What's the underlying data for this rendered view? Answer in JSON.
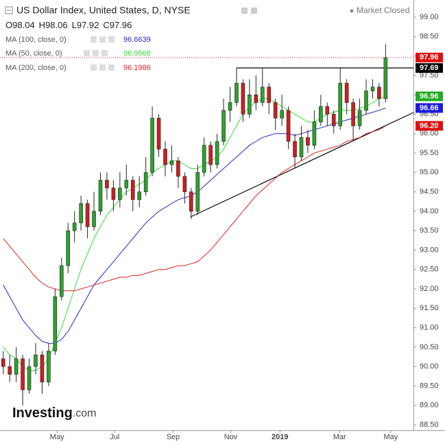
{
  "chart_data": {
    "type": "candlestick",
    "title": "US Dollar Index, United States, D, NYSE",
    "status": "Market Closed",
    "ohlc": [
      {
        "label": "O",
        "value": 98.04
      },
      {
        "label": "H",
        "value": 98.06
      },
      {
        "label": "L",
        "value": 97.92
      },
      {
        "label": "C",
        "value": 97.96
      }
    ],
    "watermark": [
      "Investing",
      ".com"
    ],
    "up_color": "#2ea12e",
    "down_color": "#cc1f1f",
    "candles": {
      "open": [
        90.2,
        90.0,
        89.8,
        90.2,
        89.4,
        90.0,
        90.3,
        89.6,
        90.4,
        91.8,
        92.6,
        93.5,
        93.7,
        94.2,
        93.6,
        94.0,
        94.8,
        94.6,
        94.3,
        94.6,
        94.8,
        94.3,
        94.5,
        95.0,
        96.4,
        95.6,
        95.2,
        95.3,
        94.9,
        94.5,
        94.0,
        95.0,
        95.7,
        95.2,
        95.8,
        96.6,
        96.8,
        97.3,
        96.5,
        97.0,
        96.8,
        97.2,
        96.8,
        96.4,
        96.6,
        95.8,
        95.4,
        95.9,
        95.7,
        96.3,
        96.7,
        96.5,
        96.2,
        97.3,
        96.8,
        96.2,
        96.6,
        97.1,
        97.2,
        96.9
      ],
      "high": [
        90.4,
        90.3,
        90.5,
        90.3,
        90.2,
        90.6,
        90.4,
        90.6,
        92.0,
        92.8,
        93.7,
        94.0,
        94.4,
        94.3,
        94.5,
        95.0,
        95.0,
        94.8,
        95.0,
        95.2,
        94.9,
        94.9,
        95.4,
        96.7,
        96.5,
        95.8,
        95.7,
        95.4,
        95.0,
        94.6,
        95.2,
        95.9,
        95.8,
        96.0,
        96.9,
        97.2,
        97.7,
        97.4,
        97.4,
        97.5,
        97.7,
        97.3,
        96.9,
        97.0,
        96.7,
        96.0,
        96.2,
        96.1,
        96.6,
        97.0,
        96.8,
        96.6,
        97.7,
        97.4,
        96.9,
        96.9,
        97.4,
        97.4,
        97.3,
        98.3
      ],
      "low": [
        89.8,
        89.6,
        89.6,
        89.0,
        89.3,
        89.8,
        89.3,
        89.5,
        90.3,
        91.7,
        92.4,
        93.2,
        93.5,
        93.3,
        93.5,
        93.9,
        94.3,
        94.0,
        94.1,
        94.4,
        94.0,
        94.1,
        94.4,
        94.9,
        95.4,
        94.9,
        95.0,
        94.6,
        94.2,
        93.8,
        93.9,
        94.9,
        95.0,
        95.1,
        95.7,
        96.3,
        96.7,
        96.3,
        96.4,
        96.6,
        96.7,
        96.5,
        96.1,
        96.2,
        95.6,
        95.1,
        95.3,
        95.5,
        95.6,
        96.2,
        96.2,
        96.0,
        96.1,
        96.5,
        95.8,
        96.1,
        96.5,
        96.9,
        96.7,
        96.8
      ],
      "close": [
        90.0,
        89.8,
        90.2,
        89.4,
        90.0,
        90.3,
        89.6,
        90.4,
        91.8,
        92.6,
        93.5,
        93.7,
        94.2,
        93.6,
        94.0,
        94.8,
        94.6,
        94.3,
        94.6,
        94.8,
        94.3,
        94.5,
        95.0,
        96.4,
        95.6,
        95.2,
        95.3,
        94.9,
        94.5,
        94.0,
        95.0,
        95.7,
        95.2,
        95.8,
        96.6,
        96.8,
        97.3,
        96.5,
        97.0,
        96.8,
        97.2,
        96.8,
        96.4,
        96.6,
        95.8,
        95.4,
        95.9,
        95.7,
        96.3,
        96.7,
        96.5,
        96.2,
        97.3,
        96.8,
        96.2,
        96.6,
        97.1,
        97.2,
        96.9,
        97.96
      ]
    },
    "series": [
      {
        "name": "MA (100, close, 0)",
        "color": "#2626c8",
        "legend_value": 96.6639,
        "values": [
          92.1,
          91.8,
          91.5,
          91.2,
          91.0,
          90.8,
          90.65,
          90.6,
          90.6,
          90.7,
          90.9,
          91.2,
          91.5,
          91.8,
          92.1,
          92.3,
          92.5,
          92.7,
          92.9,
          93.1,
          93.3,
          93.5,
          93.7,
          93.85,
          94.0,
          94.1,
          94.2,
          94.3,
          94.35,
          94.4,
          94.5,
          94.65,
          94.8,
          94.95,
          95.1,
          95.25,
          95.4,
          95.55,
          95.7,
          95.8,
          95.9,
          95.95,
          96.0,
          96.0,
          96.0,
          95.95,
          96.0,
          96.05,
          96.1,
          96.15,
          96.2,
          96.25,
          96.3,
          96.35,
          96.4,
          96.45,
          96.5,
          96.55,
          96.6,
          96.66
        ]
      },
      {
        "name": "MA (50, close, 0)",
        "color": "#33dd33",
        "legend_value": 96.9568,
        "values": [
          90.5,
          90.3,
          90.2,
          90.0,
          89.9,
          89.9,
          90.0,
          90.2,
          90.6,
          91.0,
          91.5,
          92.0,
          92.5,
          92.9,
          93.3,
          93.6,
          93.9,
          94.1,
          94.3,
          94.5,
          94.6,
          94.7,
          94.8,
          95.0,
          95.1,
          95.2,
          95.3,
          95.3,
          95.2,
          95.1,
          95.1,
          95.2,
          95.3,
          95.4,
          95.6,
          95.9,
          96.2,
          96.5,
          96.7,
          96.8,
          96.9,
          96.9,
          96.8,
          96.7,
          96.6,
          96.5,
          96.4,
          96.3,
          96.3,
          96.4,
          96.5,
          96.55,
          96.6,
          96.6,
          96.6,
          96.65,
          96.7,
          96.8,
          96.9,
          96.96
        ]
      },
      {
        "name": "MA (200, close, 0)",
        "color": "#dd2222",
        "legend_value": 96.1986,
        "values": [
          93.3,
          93.1,
          92.9,
          92.7,
          92.5,
          92.3,
          92.15,
          92.05,
          92.0,
          91.95,
          91.95,
          91.95,
          92.0,
          92.05,
          92.1,
          92.15,
          92.2,
          92.25,
          92.3,
          92.3,
          92.35,
          92.35,
          92.4,
          92.45,
          92.5,
          92.5,
          92.55,
          92.6,
          92.6,
          92.65,
          92.7,
          92.85,
          93.0,
          93.2,
          93.4,
          93.6,
          93.8,
          94.0,
          94.2,
          94.4,
          94.55,
          94.7,
          94.85,
          95.0,
          95.1,
          95.2,
          95.3,
          95.4,
          95.5,
          95.55,
          95.6,
          95.65,
          95.7,
          95.8,
          95.85,
          95.9,
          96.0,
          96.05,
          96.1,
          96.2
        ]
      }
    ],
    "level_labels": [
      97.96,
      97.69,
      96.96,
      96.66,
      {
        "value": 96.2,
        "label": "96.20"
      }
    ],
    "level_colors": [
      "#e01010",
      "#000000",
      "#22aa22",
      "#1a1ae0",
      "#e01010"
    ],
    "xlim": [
      -0.5,
      63.3
    ],
    "xticks": [
      {
        "value": 8.3,
        "label": "May"
      },
      {
        "value": 17.2,
        "label": "Jul"
      },
      {
        "value": 26.2,
        "label": "Sep"
      },
      {
        "value": 35.1,
        "label": "Nov"
      },
      {
        "value": 42.7,
        "label": "2019"
      },
      {
        "value": 51.9,
        "label": "Mar"
      },
      {
        "value": 59.8,
        "label": "May"
      }
    ],
    "ylim": [
      88.5,
      99.0
    ],
    "yticks": [
      {
        "value": 88.5,
        "label": "88.50"
      },
      {
        "value": 89,
        "label": "89.00"
      },
      {
        "value": 89.5,
        "label": "89.50"
      },
      {
        "value": 90,
        "label": "90.00"
      },
      {
        "value": 90.5,
        "label": "90.50"
      },
      {
        "value": 91,
        "label": "91.00"
      },
      {
        "value": 91.5,
        "label": "91.50"
      },
      {
        "value": 92,
        "label": "92.00"
      },
      {
        "value": 92.5,
        "label": "92.50"
      },
      {
        "value": 93,
        "label": "93.00"
      },
      {
        "value": 93.5,
        "label": "93.50"
      },
      {
        "value": 94,
        "label": "94.00"
      },
      {
        "value": 94.5,
        "label": "94.50"
      },
      {
        "value": 95,
        "label": "95.00"
      },
      {
        "value": 95.5,
        "label": "95.50"
      },
      {
        "value": 96,
        "label": "96.00"
      },
      {
        "value": 96.5,
        "label": "96.50"
      },
      {
        "value": 97,
        "label": "97.00"
      },
      {
        "value": 97.5,
        "label": "97.50"
      },
      {
        "value": 98,
        "label": "98.00"
      },
      {
        "value": 98.5,
        "label": "98.50"
      },
      {
        "value": 99,
        "label": "99.00"
      }
    ],
    "grid": false
  }
}
